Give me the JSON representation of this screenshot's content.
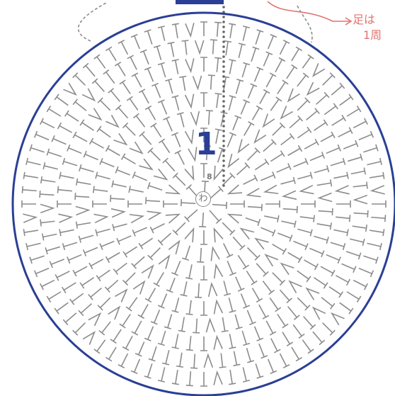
{
  "annotation": {
    "line1": "足は",
    "line2": "1周"
  },
  "center": {
    "ring_label": "わ",
    "chain_count": "8",
    "round_start": "1"
  },
  "colors": {
    "outline": "#2a3f95",
    "stitch": "#8c8c8c",
    "annotation": "#e2736f",
    "label": "#2a3f95"
  },
  "pattern": {
    "rounds": 10,
    "icons": [
      "dashed-leg-hook-icon",
      "arrow-icon",
      "magic-ring-icon"
    ]
  }
}
